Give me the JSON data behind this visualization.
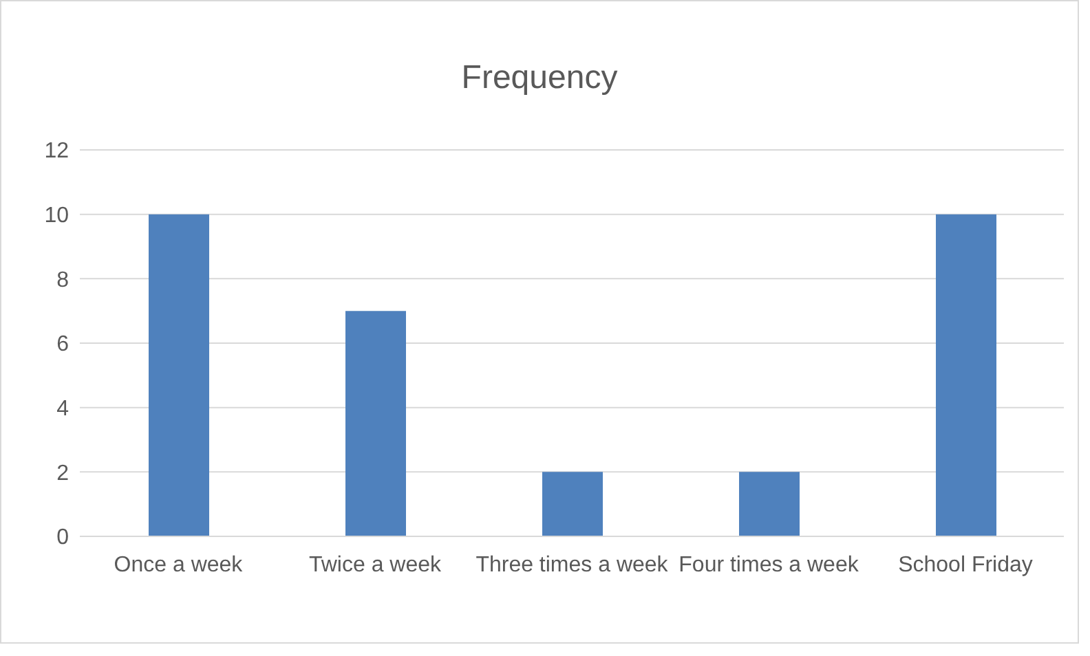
{
  "chart_data": {
    "type": "bar",
    "title": "Frequency",
    "categories": [
      "Once a week",
      "Twice a week",
      "Three times a week",
      "Four times a week",
      "School Friday"
    ],
    "values": [
      10,
      7,
      2,
      2,
      10
    ],
    "color": "#4f81bd",
    "ylim": [
      0,
      12
    ],
    "yticks": [
      0,
      2,
      4,
      6,
      8,
      10,
      12
    ],
    "grid": "y",
    "legend": false
  }
}
